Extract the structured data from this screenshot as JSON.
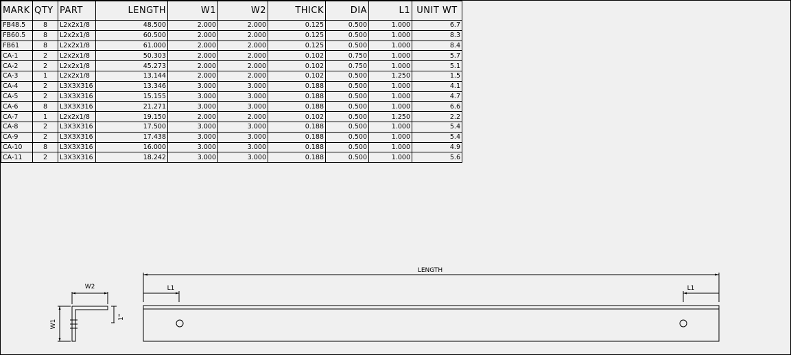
{
  "table": {
    "headers": [
      "MARK",
      "QTY",
      "PART",
      "LENGTH",
      "W1",
      "W2",
      "THICK",
      "DIA",
      "L1",
      "UNIT WT"
    ],
    "rows": [
      [
        "FB48.5",
        "8",
        "L2x2x1/8",
        "48.500",
        "2.000",
        "2.000",
        "0.125",
        "0.500",
        "1.000",
        "6.7"
      ],
      [
        "FB60.5",
        "8",
        "L2x2x1/8",
        "60.500",
        "2.000",
        "2.000",
        "0.125",
        "0.500",
        "1.000",
        "8.3"
      ],
      [
        "FB61",
        "8",
        "L2x2x1/8",
        "61.000",
        "2.000",
        "2.000",
        "0.125",
        "0.500",
        "1.000",
        "8.4"
      ],
      [
        "CA-1",
        "2",
        "L2x2x1/8",
        "50.303",
        "2.000",
        "2.000",
        "0.102",
        "0.750",
        "1.000",
        "5.7"
      ],
      [
        "CA-2",
        "2",
        "L2x2x1/8",
        "45.273",
        "2.000",
        "2.000",
        "0.102",
        "0.750",
        "1.000",
        "5.1"
      ],
      [
        "CA-3",
        "1",
        "L2x2x1/8",
        "13.144",
        "2.000",
        "2.000",
        "0.102",
        "0.500",
        "1.250",
        "1.5"
      ],
      [
        "CA-4",
        "2",
        "L3X3X316",
        "13.346",
        "3.000",
        "3.000",
        "0.188",
        "0.500",
        "1.000",
        "4.1"
      ],
      [
        "CA-5",
        "2",
        "L3X3X316",
        "15.155",
        "3.000",
        "3.000",
        "0.188",
        "0.500",
        "1.000",
        "4.7"
      ],
      [
        "CA-6",
        "8",
        "L3X3X316",
        "21.271",
        "3.000",
        "3.000",
        "0.188",
        "0.500",
        "1.000",
        "6.6"
      ],
      [
        "CA-7",
        "1",
        "L2x2x1/8",
        "19.150",
        "2.000",
        "2.000",
        "0.102",
        "0.500",
        "1.250",
        "2.2"
      ],
      [
        "CA-8",
        "2",
        "L3X3X316",
        "17.500",
        "3.000",
        "3.000",
        "0.188",
        "0.500",
        "1.000",
        "5.4"
      ],
      [
        "CA-9",
        "2",
        "L3X3X316",
        "17.438",
        "3.000",
        "3.000",
        "0.188",
        "0.500",
        "1.000",
        "5.4"
      ],
      [
        "CA-10",
        "8",
        "L3X3X316",
        "16.000",
        "3.000",
        "3.000",
        "0.188",
        "0.500",
        "1.000",
        "4.9"
      ],
      [
        "CA-11",
        "2",
        "L3X3X316",
        "18.242",
        "3.000",
        "3.000",
        "0.188",
        "0.500",
        "1.000",
        "5.6"
      ]
    ]
  },
  "drawing": {
    "length_label": "LENGTH",
    "l1_left_label": "L1",
    "l1_right_label": "L1",
    "w2_label": "W2",
    "w1_label": "W1",
    "one_inch_label": "1\""
  }
}
